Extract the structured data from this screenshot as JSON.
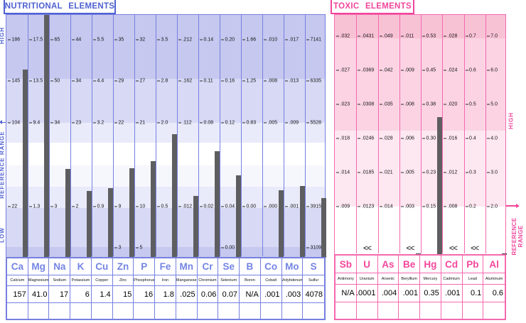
{
  "chart_data": [
    {
      "id": "nutritional",
      "type": "bar",
      "title": "NUTRITIONAL ELEMENTS",
      "side_labels": {
        "high": "HIGH",
        "reference": "REFERENCE RANGE",
        "low": "LOW"
      },
      "colors": {
        "accent": "#4f61d2",
        "line": "#7680e0",
        "symbol": "#7484e4",
        "bar": "#5e5e60",
        "bands": {
          "a": "#c6c8ef",
          "b": "#d7d9f5",
          "c": "#e9ebfa",
          "d": "#f6f7fd"
        }
      },
      "columns": [
        {
          "symbol": "Ca",
          "name": "Calcium",
          "value": "157",
          "ticks": [
            "186",
            "145",
            "104",
            "22"
          ]
        },
        {
          "symbol": "Mg",
          "name": "Magnesium",
          "value": "41.0",
          "ticks": [
            "17.5",
            "13.5",
            "9.4",
            "1.3"
          ]
        },
        {
          "symbol": "Na",
          "name": "Sodium",
          "value": "17",
          "ticks": [
            "65",
            "50",
            "34",
            "3"
          ]
        },
        {
          "symbol": "K",
          "name": "Potassium",
          "value": "6",
          "ticks": [
            "44",
            "34",
            "23",
            "2"
          ]
        },
        {
          "symbol": "Cu",
          "name": "Copper",
          "value": "1.4",
          "ticks": [
            "5.5",
            "4.4",
            "3.2",
            "0.9"
          ]
        },
        {
          "symbol": "Zn",
          "name": "Zinc",
          "value": "15",
          "ticks": [
            "35",
            "29",
            "22",
            "9",
            "3"
          ]
        },
        {
          "symbol": "P",
          "name": "Phosphorus",
          "value": "16",
          "ticks": [
            "32",
            "27",
            "21",
            "10",
            "5"
          ]
        },
        {
          "symbol": "Fe",
          "name": "Iron",
          "value": "1.8",
          "ticks": [
            "3.5",
            "2.8",
            "2.0",
            "0.5"
          ]
        },
        {
          "symbol": "Mn",
          "name": "Manganese",
          "value": ".025",
          "ticks": [
            ".212",
            ".162",
            ".112",
            ".012"
          ]
        },
        {
          "symbol": "Cr",
          "name": "Chromium",
          "value": "0.06",
          "ticks": [
            "0.14",
            "0.11",
            "0.08",
            "0.02"
          ]
        },
        {
          "symbol": "Se",
          "name": "Selenium",
          "value": "0.07",
          "ticks": [
            "0.20",
            "0.16",
            "0.12",
            "0.04",
            "0.00"
          ]
        },
        {
          "symbol": "B",
          "name": "Boron",
          "value": "N/A",
          "ticks": [
            "1.66",
            "1.25",
            "0.83",
            "0.00"
          ]
        },
        {
          "symbol": "Co",
          "name": "Cobalt",
          "value": ".001",
          "ticks": [
            ".010",
            ".008",
            ".005",
            ".000"
          ]
        },
        {
          "symbol": "Mo",
          "name": "Molybdenum",
          "value": ".003",
          "ticks": [
            ".017",
            ".013",
            ".009",
            ".001"
          ]
        },
        {
          "symbol": "S",
          "name": "Sulfur",
          "value": "4078",
          "ticks": [
            "7141",
            "6335",
            "5528",
            "3915",
            "3109"
          ]
        }
      ]
    },
    {
      "id": "toxic",
      "type": "bar",
      "title": "TOXIC ELEMENTS",
      "side_labels": {
        "high": "HIGH",
        "reference": "REFERENCE RANGE"
      },
      "detection_marker": "<<",
      "colors": {
        "accent": "#f0459b",
        "line": "#f469ae",
        "symbol": "#f4459c",
        "bar": "#5e5e60",
        "bands": {
          "a": "#f8c2d5",
          "b": "#fbd3e3",
          "c": "#fde7f1",
          "d": "#ffffff"
        }
      },
      "columns": [
        {
          "symbol": "Sb",
          "name": "Antimony",
          "value": "N/A",
          "ticks": [
            ".032",
            ".027",
            ".023",
            ".018",
            ".014",
            ".009"
          ]
        },
        {
          "symbol": "U",
          "name": "Uranium",
          "value": ".0001",
          "below_detection": true,
          "ticks": [
            ".0431",
            ".0369",
            ".0308",
            ".0246",
            ".0185",
            ".0123"
          ]
        },
        {
          "symbol": "As",
          "name": "Arsenic",
          "value": ".004",
          "ticks": [
            ".049",
            ".042",
            ".035",
            ".028",
            ".021",
            ".014"
          ]
        },
        {
          "symbol": "Be",
          "name": "Beryllium",
          "value": ".001",
          "below_detection": true,
          "edge_dash": true,
          "ticks": [
            ".011",
            ".009",
            ".008",
            ".006",
            ".005",
            ".003"
          ]
        },
        {
          "symbol": "Hg",
          "name": "Mercury",
          "value": "0.35",
          "ticks": [
            "0.53",
            "0.45",
            "0.38",
            "0.30",
            "0.23",
            "0.15"
          ]
        },
        {
          "symbol": "Cd",
          "name": "Cadmium",
          "value": ".001",
          "below_detection": true,
          "ticks": [
            ".028",
            ".024",
            ".020",
            ".016",
            ".012",
            ".008"
          ]
        },
        {
          "symbol": "Pb",
          "name": "Lead",
          "value": "0.1",
          "below_detection": true,
          "ticks": [
            "0.7",
            "0.6",
            "0.5",
            "0.4",
            "0.3",
            "0.2"
          ]
        },
        {
          "symbol": "Al",
          "name": "Aluminum",
          "value": "0.6",
          "edge_dash": true,
          "ticks": [
            "7.0",
            "6.0",
            "5.0",
            "4.0",
            "3.0",
            "2.0"
          ]
        }
      ]
    }
  ]
}
